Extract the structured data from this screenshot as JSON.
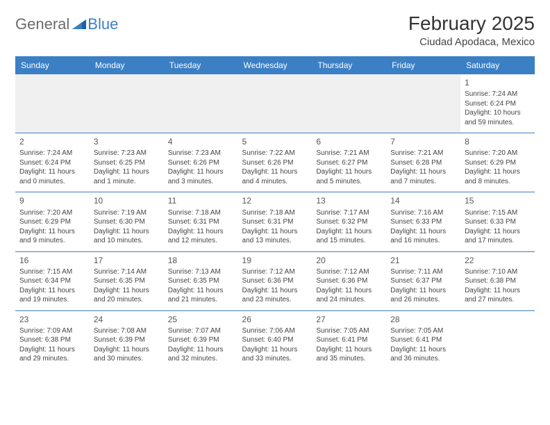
{
  "logo": {
    "general": "General",
    "blue": "Blue"
  },
  "title": "February 2025",
  "location": "Ciudad Apodaca, Mexico",
  "colors": {
    "accent": "#3b7fc4",
    "header_bg": "#3b7fc4",
    "header_fg": "#ffffff",
    "empty_bg": "#f0f0f0",
    "text": "#444444"
  },
  "day_headers": [
    "Sunday",
    "Monday",
    "Tuesday",
    "Wednesday",
    "Thursday",
    "Friday",
    "Saturday"
  ],
  "weeks": [
    [
      null,
      null,
      null,
      null,
      null,
      null,
      {
        "n": "1",
        "sr": "7:24 AM",
        "ss": "6:24 PM",
        "dl": "10 hours and 59 minutes."
      }
    ],
    [
      {
        "n": "2",
        "sr": "7:24 AM",
        "ss": "6:24 PM",
        "dl": "11 hours and 0 minutes."
      },
      {
        "n": "3",
        "sr": "7:23 AM",
        "ss": "6:25 PM",
        "dl": "11 hours and 1 minute."
      },
      {
        "n": "4",
        "sr": "7:23 AM",
        "ss": "6:26 PM",
        "dl": "11 hours and 3 minutes."
      },
      {
        "n": "5",
        "sr": "7:22 AM",
        "ss": "6:26 PM",
        "dl": "11 hours and 4 minutes."
      },
      {
        "n": "6",
        "sr": "7:21 AM",
        "ss": "6:27 PM",
        "dl": "11 hours and 5 minutes."
      },
      {
        "n": "7",
        "sr": "7:21 AM",
        "ss": "6:28 PM",
        "dl": "11 hours and 7 minutes."
      },
      {
        "n": "8",
        "sr": "7:20 AM",
        "ss": "6:29 PM",
        "dl": "11 hours and 8 minutes."
      }
    ],
    [
      {
        "n": "9",
        "sr": "7:20 AM",
        "ss": "6:29 PM",
        "dl": "11 hours and 9 minutes."
      },
      {
        "n": "10",
        "sr": "7:19 AM",
        "ss": "6:30 PM",
        "dl": "11 hours and 10 minutes."
      },
      {
        "n": "11",
        "sr": "7:18 AM",
        "ss": "6:31 PM",
        "dl": "11 hours and 12 minutes."
      },
      {
        "n": "12",
        "sr": "7:18 AM",
        "ss": "6:31 PM",
        "dl": "11 hours and 13 minutes."
      },
      {
        "n": "13",
        "sr": "7:17 AM",
        "ss": "6:32 PM",
        "dl": "11 hours and 15 minutes."
      },
      {
        "n": "14",
        "sr": "7:16 AM",
        "ss": "6:33 PM",
        "dl": "11 hours and 16 minutes."
      },
      {
        "n": "15",
        "sr": "7:15 AM",
        "ss": "6:33 PM",
        "dl": "11 hours and 17 minutes."
      }
    ],
    [
      {
        "n": "16",
        "sr": "7:15 AM",
        "ss": "6:34 PM",
        "dl": "11 hours and 19 minutes."
      },
      {
        "n": "17",
        "sr": "7:14 AM",
        "ss": "6:35 PM",
        "dl": "11 hours and 20 minutes."
      },
      {
        "n": "18",
        "sr": "7:13 AM",
        "ss": "6:35 PM",
        "dl": "11 hours and 21 minutes."
      },
      {
        "n": "19",
        "sr": "7:12 AM",
        "ss": "6:36 PM",
        "dl": "11 hours and 23 minutes."
      },
      {
        "n": "20",
        "sr": "7:12 AM",
        "ss": "6:36 PM",
        "dl": "11 hours and 24 minutes."
      },
      {
        "n": "21",
        "sr": "7:11 AM",
        "ss": "6:37 PM",
        "dl": "11 hours and 26 minutes."
      },
      {
        "n": "22",
        "sr": "7:10 AM",
        "ss": "6:38 PM",
        "dl": "11 hours and 27 minutes."
      }
    ],
    [
      {
        "n": "23",
        "sr": "7:09 AM",
        "ss": "6:38 PM",
        "dl": "11 hours and 29 minutes."
      },
      {
        "n": "24",
        "sr": "7:08 AM",
        "ss": "6:39 PM",
        "dl": "11 hours and 30 minutes."
      },
      {
        "n": "25",
        "sr": "7:07 AM",
        "ss": "6:39 PM",
        "dl": "11 hours and 32 minutes."
      },
      {
        "n": "26",
        "sr": "7:06 AM",
        "ss": "6:40 PM",
        "dl": "11 hours and 33 minutes."
      },
      {
        "n": "27",
        "sr": "7:05 AM",
        "ss": "6:41 PM",
        "dl": "11 hours and 35 minutes."
      },
      {
        "n": "28",
        "sr": "7:05 AM",
        "ss": "6:41 PM",
        "dl": "11 hours and 36 minutes."
      },
      null
    ]
  ],
  "labels": {
    "sunrise": "Sunrise:",
    "sunset": "Sunset:",
    "daylight": "Daylight:"
  }
}
